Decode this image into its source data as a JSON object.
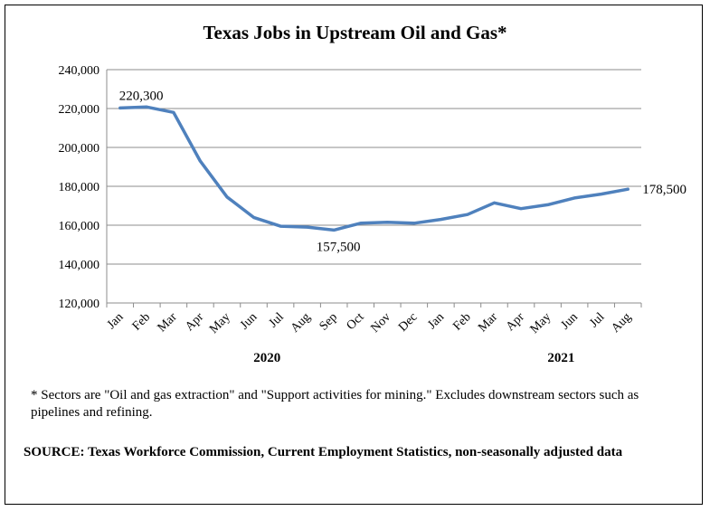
{
  "chart_data": {
    "type": "line",
    "title": "Texas Jobs in Upstream Oil and Gas*",
    "categories": [
      "Jan",
      "Feb",
      "Mar",
      "Apr",
      "May",
      "Jun",
      "Jul",
      "Aug",
      "Sep",
      "Oct",
      "Nov",
      "Dec",
      "Jan",
      "Feb",
      "Mar",
      "Apr",
      "May",
      "Jun",
      "Jul",
      "Aug"
    ],
    "year_labels": [
      {
        "label": "2020",
        "category_index": 5.5
      },
      {
        "label": "2021",
        "category_index": 16.5
      }
    ],
    "series": [
      {
        "values": [
          220300,
          220800,
          218000,
          193000,
          174500,
          164000,
          159500,
          159000,
          157500,
          161000,
          161500,
          161000,
          163000,
          165500,
          171500,
          168500,
          170500,
          174000,
          176000,
          178500
        ],
        "color": "#4f81bd"
      }
    ],
    "data_labels": [
      {
        "index": 0,
        "text": "220,300"
      },
      {
        "index": 8,
        "text": "157,500"
      },
      {
        "index": 19,
        "text": "178,500"
      }
    ],
    "ylim": [
      120000,
      240000
    ],
    "y_ticks": [
      "120,000",
      "140,000",
      "160,000",
      "180,000",
      "200,000",
      "220,000",
      "240,000"
    ],
    "y_tick_values": [
      120000,
      140000,
      160000,
      180000,
      200000,
      220000,
      240000
    ],
    "grid": true,
    "legend": "none",
    "xlabel": "",
    "ylabel": ""
  },
  "footnote": "* Sectors are \"Oil and gas extraction\" and \"Support activities for mining.\"  Excludes downstream sectors such as pipelines and refining.",
  "source": "SOURCE: Texas Workforce Commission, Current Employment Statistics, non-seasonally adjusted data"
}
